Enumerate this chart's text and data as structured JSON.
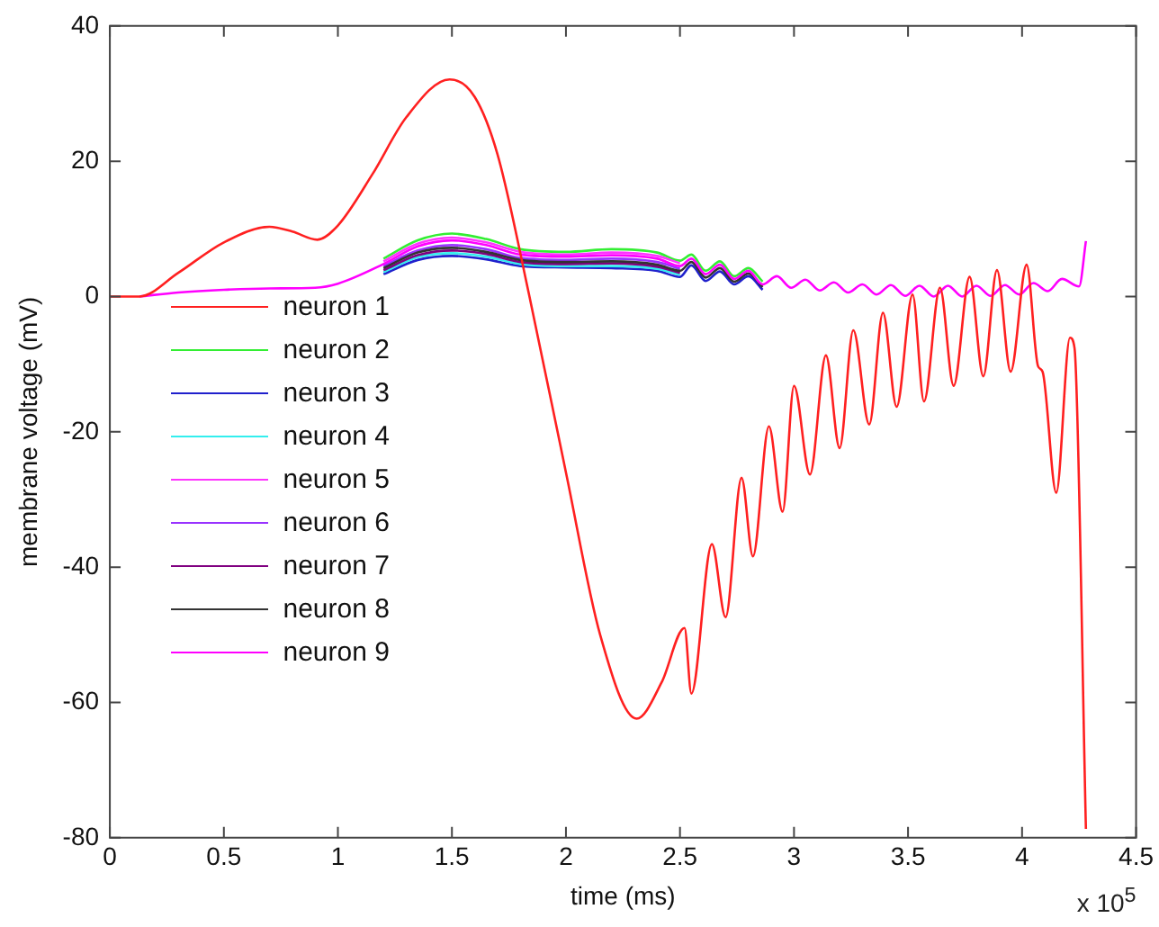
{
  "chart_data": {
    "type": "line",
    "xlabel": "time (ms)",
    "ylabel": "membrane voltage (mV)",
    "annotations": [
      "x 10$^{5}$"
    ],
    "xlim": [
      0,
      4.5
    ],
    "xticks": [
      0,
      0.5,
      1,
      1.5,
      2,
      2.5,
      3,
      3.5,
      4,
      4.5
    ],
    "ylim": [
      -80,
      40
    ],
    "yticks": [
      -80,
      -60,
      -40,
      -20,
      0,
      20,
      40
    ],
    "grid": false,
    "legend": "center left",
    "marker": "none",
    "line_style": "solid",
    "series": [
      {
        "name": "neuron 1",
        "color": "#ff2020",
        "x": [
          0,
          0.13,
          0.3,
          0.5,
          0.7,
          0.8,
          0.91,
          1.0,
          1.15,
          1.3,
          1.49,
          1.6,
          1.7,
          1.84,
          2.0,
          2.15,
          2.31,
          2.42,
          2.52,
          2.55,
          2.64,
          2.7,
          2.77,
          2.82,
          2.89,
          2.95,
          3.0,
          3.07,
          3.14,
          3.2,
          3.26,
          3.33,
          3.39,
          3.45,
          3.52,
          3.57,
          3.64,
          3.7,
          3.77,
          3.83,
          3.89,
          3.95,
          4.02,
          4.07,
          4.09,
          4.15,
          4.21,
          4.23,
          4.28
        ],
        "values": [
          0,
          0,
          3.5,
          8.0,
          10.3,
          9.6,
          8.4,
          10.5,
          18,
          26.5,
          32.1,
          29.5,
          21,
          0,
          -26,
          -50,
          -62.4,
          -57,
          -49,
          -58.7,
          -36.6,
          -47.4,
          -26.8,
          -38.4,
          -19.2,
          -31.8,
          -13.2,
          -26.3,
          -8.7,
          -22.4,
          -5.0,
          -18.9,
          -2.4,
          -16.3,
          0.3,
          -15.5,
          1.3,
          -13.2,
          2.9,
          -11.8,
          3.9,
          -11.1,
          4.7,
          -10.3,
          -11.1,
          -29,
          -6.1,
          -7.6,
          -78.7
        ]
      },
      {
        "name": "neuron 2",
        "color": "#33ee33",
        "x": [
          1.2,
          1.35,
          1.5,
          1.65,
          1.8,
          2.0,
          2.2,
          2.4,
          2.5,
          2.55,
          2.6125,
          2.675,
          2.7375,
          2.8,
          2.8625
        ],
        "values": [
          5.6,
          8.3,
          9.3,
          8.5,
          7.0,
          6.6,
          7.0,
          6.5,
          5.3,
          6.2,
          3.8,
          5.2,
          3.0,
          4.2,
          2.2
        ]
      },
      {
        "name": "neuron 3",
        "color": "#2020cc",
        "x": [
          1.2,
          1.35,
          1.5,
          1.65,
          1.8,
          2.0,
          2.2,
          2.4,
          2.5,
          2.55,
          2.6125,
          2.675,
          2.7375,
          2.8,
          2.8625
        ],
        "values": [
          3.3,
          5.4,
          6.0,
          5.5,
          4.5,
          4.3,
          4.2,
          3.8,
          2.9,
          4.6,
          2.3,
          3.7,
          1.8,
          3.0,
          1.0
        ]
      },
      {
        "name": "neuron 4",
        "color": "#33eeee",
        "x": [
          1.2,
          1.35,
          1.5,
          1.65,
          1.8,
          2.0,
          2.2,
          2.4,
          2.5
        ],
        "values": [
          3.6,
          5.8,
          6.4,
          5.9,
          4.8,
          4.5,
          4.5,
          4.1,
          3.2
        ]
      },
      {
        "name": "neuron 5",
        "color": "#ff33ff",
        "x": [
          1.2,
          1.35,
          1.5,
          1.65,
          1.8,
          2.0,
          2.2,
          2.4,
          2.5
        ],
        "values": [
          5.2,
          7.8,
          8.7,
          8.0,
          6.6,
          6.2,
          6.5,
          6.0,
          4.9
        ]
      },
      {
        "name": "neuron 6",
        "color": "#9933ff",
        "x": [
          1.2,
          1.35,
          1.5,
          1.65,
          1.8,
          2.0,
          2.2,
          2.4,
          2.5
        ],
        "values": [
          4.5,
          6.8,
          7.6,
          7.0,
          5.7,
          5.4,
          5.6,
          5.1,
          4.1
        ]
      },
      {
        "name": "neuron 7",
        "color": "#800080",
        "x": [
          1.2,
          1.35,
          1.5,
          1.65,
          1.8,
          2.0,
          2.2,
          2.4,
          2.5
        ],
        "values": [
          3.9,
          6.1,
          6.8,
          6.3,
          5.1,
          4.8,
          4.9,
          4.4,
          3.5
        ]
      },
      {
        "name": "neuron 8",
        "color": "#333333",
        "x": [
          1.2,
          1.35,
          1.5,
          1.65,
          1.8,
          2.0,
          2.2,
          2.4,
          2.5,
          2.55,
          2.6125,
          2.675,
          2.7375,
          2.8,
          2.8625
        ],
        "values": [
          4.2,
          6.5,
          7.2,
          6.6,
          5.4,
          5.1,
          5.2,
          4.7,
          3.8,
          5.1,
          2.8,
          4.2,
          2.2,
          3.4,
          1.4
        ]
      },
      {
        "name": "neuron 9",
        "color": "#ff00ff",
        "x": [
          0.13,
          0.3,
          0.5,
          0.7,
          0.9,
          1.0,
          1.2,
          1.35,
          1.5,
          1.65,
          1.8,
          2.0,
          2.2,
          2.4,
          2.5,
          2.55,
          2.6125,
          2.675,
          2.7375,
          2.8,
          2.8625,
          2.925,
          2.9875,
          3.05,
          3.1125,
          3.175,
          3.2375,
          3.3,
          3.3625,
          3.425,
          3.4875,
          3.55,
          3.6125,
          3.675,
          3.7375,
          3.8,
          3.8625,
          3.925,
          3.9875,
          4.05,
          4.1125,
          4.175,
          4.25,
          4.28
        ],
        "values": [
          0,
          0.6,
          1.0,
          1.2,
          1.3,
          1.9,
          4.8,
          7.4,
          8.3,
          7.6,
          6.2,
          5.9,
          6.1,
          5.6,
          4.5,
          5.6,
          3.3,
          4.7,
          2.6,
          3.8,
          1.8,
          3.0,
          1.3,
          2.5,
          0.9,
          2.1,
          0.6,
          1.8,
          0.3,
          1.7,
          0.1,
          1.6,
          0,
          1.6,
          0,
          1.6,
          0.1,
          1.7,
          0.3,
          2.0,
          0.8,
          2.6,
          1.5,
          8.2
        ]
      }
    ]
  }
}
